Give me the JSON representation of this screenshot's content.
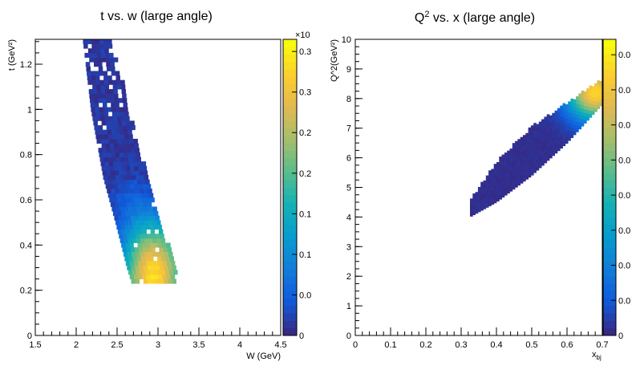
{
  "chart_data": [
    {
      "type": "heatmap",
      "title": "t vs. w (large angle)",
      "xlabel": "W (GeV)",
      "ylabel": "t (GeV²)",
      "xlim": [
        1.5,
        4.5
      ],
      "ylim": [
        0,
        1.31
      ],
      "x_ticks": [
        "1.5",
        "2",
        "2.5",
        "3",
        "3.5",
        "4",
        "4.5"
      ],
      "y_ticks": [
        "0",
        "0.2",
        "0.4",
        "0.6",
        "0.8",
        "1",
        "1.2"
      ],
      "colorbar": {
        "exponent_label": "×10",
        "tick_labels": [
          "0",
          "0.0",
          "0.1",
          "0.1",
          "0.2",
          "0.2",
          "0.3",
          "0.3"
        ]
      },
      "distribution": {
        "band": "diagonal band from high t at low W to low t at high W",
        "band_edges_W_vs_t": [
          {
            "t": 1.31,
            "w_min": 2.08,
            "w_max": 2.42
          },
          {
            "t": 1.0,
            "w_min": 2.18,
            "w_max": 2.62
          },
          {
            "t": 0.7,
            "w_min": 2.33,
            "w_max": 2.85
          },
          {
            "t": 0.5,
            "w_min": 2.48,
            "w_max": 3.0
          },
          {
            "t": 0.3,
            "w_min": 2.62,
            "w_max": 3.2
          },
          {
            "t": 0.23,
            "w_min": 2.68,
            "w_max": 3.2
          }
        ],
        "t_min": 0.23,
        "peak": {
          "w": 2.95,
          "t": 0.27
        }
      }
    },
    {
      "type": "heatmap",
      "title": "Q² vs. x (large angle)",
      "xlabel": "x_bj",
      "xlabel_main": "x",
      "xlabel_sub": "bj",
      "ylabel": "Q^2(GeV²)",
      "xlim": [
        0,
        0.7
      ],
      "ylim": [
        0,
        10
      ],
      "x_ticks": [
        "0",
        "0.1",
        "0.2",
        "0.3",
        "0.4",
        "0.5",
        "0.6",
        "0.7"
      ],
      "y_ticks": [
        "0",
        "1",
        "2",
        "3",
        "4",
        "5",
        "6",
        "7",
        "8",
        "9",
        "10"
      ],
      "colorbar": {
        "tick_labels": [
          "0",
          "0.0",
          "0.0",
          "0.0",
          "0.0",
          "0.0",
          "0.0",
          "0.0",
          "0.0"
        ]
      },
      "distribution": {
        "band": "narrow diagonal band rising with x",
        "band_edges_Q2_vs_x": [
          {
            "x": 0.325,
            "q_min": 4.0,
            "q_max": 4.5
          },
          {
            "x": 0.4,
            "q_min": 4.5,
            "q_max": 5.8
          },
          {
            "x": 0.5,
            "q_min": 5.4,
            "q_max": 7.0
          },
          {
            "x": 0.6,
            "q_min": 6.5,
            "q_max": 7.8
          },
          {
            "x": 0.7,
            "q_min": 7.8,
            "q_max": 8.6
          }
        ],
        "peak": {
          "x": 0.68,
          "q2": 8.2
        }
      }
    }
  ]
}
